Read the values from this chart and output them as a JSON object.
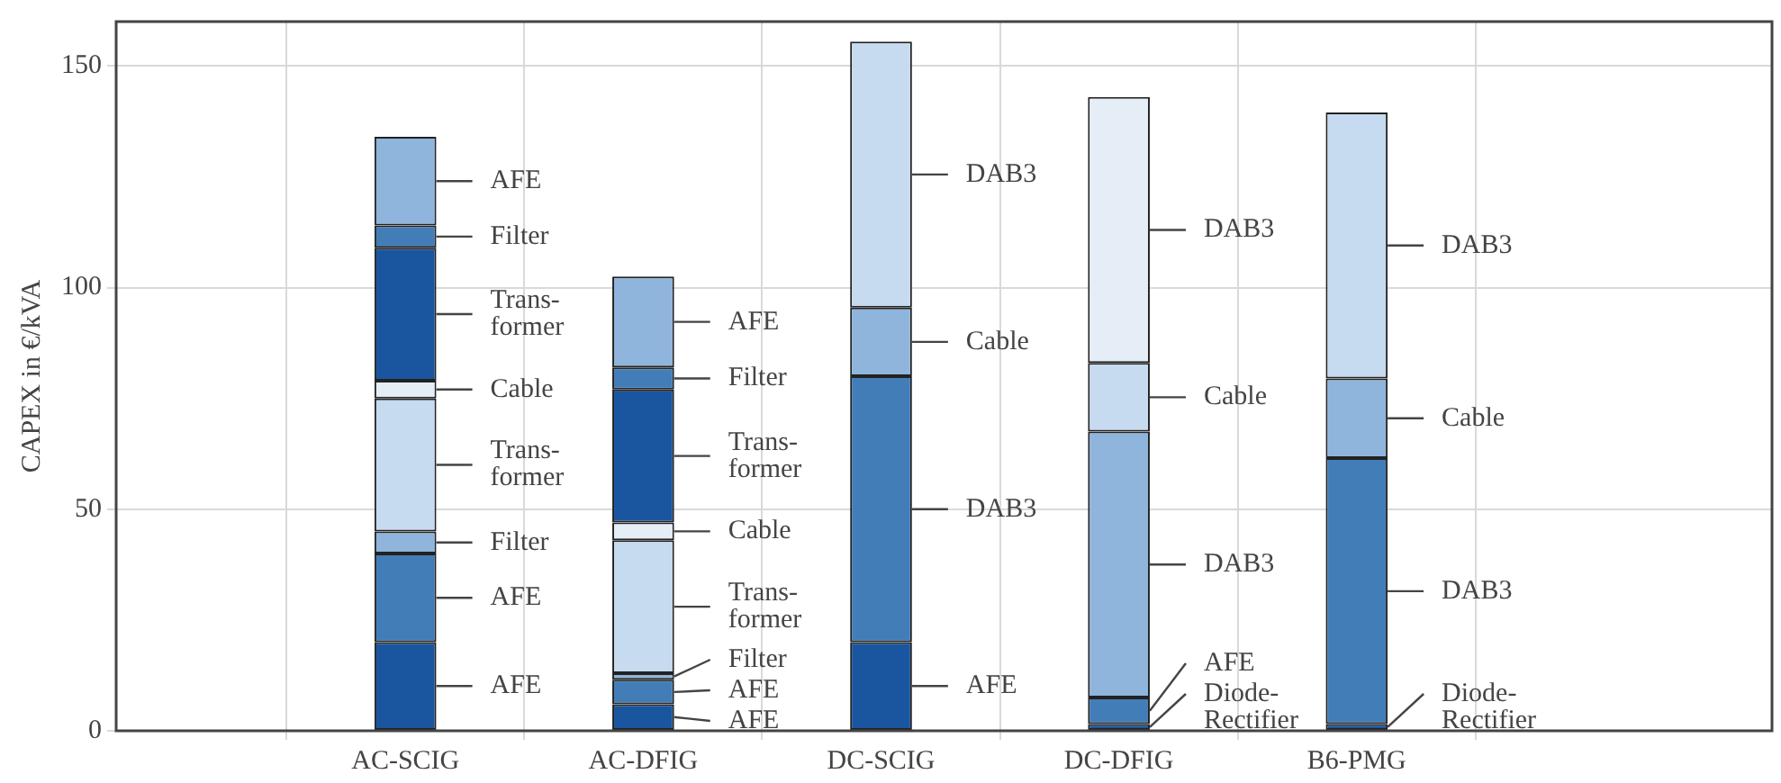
{
  "chart_data": {
    "type": "bar",
    "stacked": true,
    "ylabel": "CAPEX in €/kVA",
    "categories": [
      "AC-SCIG",
      "AC-DFIG",
      "DC-SCIG",
      "DC-DFIG",
      "B6-PMG"
    ],
    "ylim": [
      0,
      160
    ],
    "yticks": [
      0,
      50,
      100,
      150
    ],
    "grid": true,
    "legend": false,
    "series": [
      {
        "values": [
          20,
          6,
          20,
          1.5,
          1.5
        ],
        "colors": [
          "#1a569f",
          "#1a569f",
          "#1a569f",
          "#1a569f",
          "#1a569f"
        ],
        "value_labels": [
          "AFE",
          "AFE",
          "AFE",
          "Diode-\nRectifier",
          "Diode-\nRectifier"
        ]
      },
      {
        "values": [
          20,
          5.5,
          60,
          6,
          60
        ],
        "colors": [
          "#427db8",
          "#427db8",
          "#427db8",
          "#427db8",
          "#427db8"
        ],
        "value_labels": [
          "AFE",
          "AFE",
          "DAB3",
          "AFE",
          "DAB3"
        ]
      },
      {
        "values": [
          5,
          1.5,
          15.5,
          60,
          18
        ],
        "colors": [
          "#8fb5dc",
          "#8fb5dc",
          "#8fb5dc",
          "#8fb5dc",
          "#8fb5dc"
        ],
        "value_labels": [
          "Filter",
          "Filter",
          "Cable",
          "DAB3",
          "Cable"
        ]
      },
      {
        "values": [
          30,
          30,
          60,
          15.5,
          60
        ],
        "colors": [
          "#c6dbef",
          "#c6dbef",
          "#c6dbef",
          "#c6dbef",
          "#c6dbef"
        ],
        "value_labels": [
          "Trans-\nformer",
          "Trans-\nformer",
          "DAB3",
          "Cable",
          "DAB3"
        ]
      },
      {
        "values": [
          4,
          4,
          null,
          60,
          null
        ],
        "colors": [
          "#e5eef7",
          "#e5eef7",
          "#e5eef7",
          "#e5eef7",
          "#e5eef7"
        ],
        "value_labels": [
          "Cable",
          "Cable",
          null,
          "DAB3",
          null
        ]
      },
      {
        "values": [
          30,
          30,
          null,
          null,
          null
        ],
        "colors": [
          "#1a569f",
          "#1a569f",
          "#1a569f",
          "#1a569f",
          "#1a569f"
        ],
        "value_labels": [
          "Trans-\nformer",
          "Trans-\nformer",
          null,
          null,
          null
        ]
      },
      {
        "values": [
          5,
          5,
          null,
          null,
          null
        ],
        "colors": [
          "#427db8",
          "#427db8",
          "#427db8",
          "#427db8",
          "#427db8"
        ],
        "value_labels": [
          "Filter",
          "Filter",
          null,
          null,
          null
        ]
      },
      {
        "values": [
          20,
          20.5,
          null,
          null,
          null
        ],
        "colors": [
          "#8fb5dc",
          "#8fb5dc",
          "#8fb5dc",
          "#8fb5dc",
          "#8fb5dc"
        ],
        "value_labels": [
          "AFE",
          "AFE",
          null,
          null,
          null
        ]
      }
    ]
  }
}
